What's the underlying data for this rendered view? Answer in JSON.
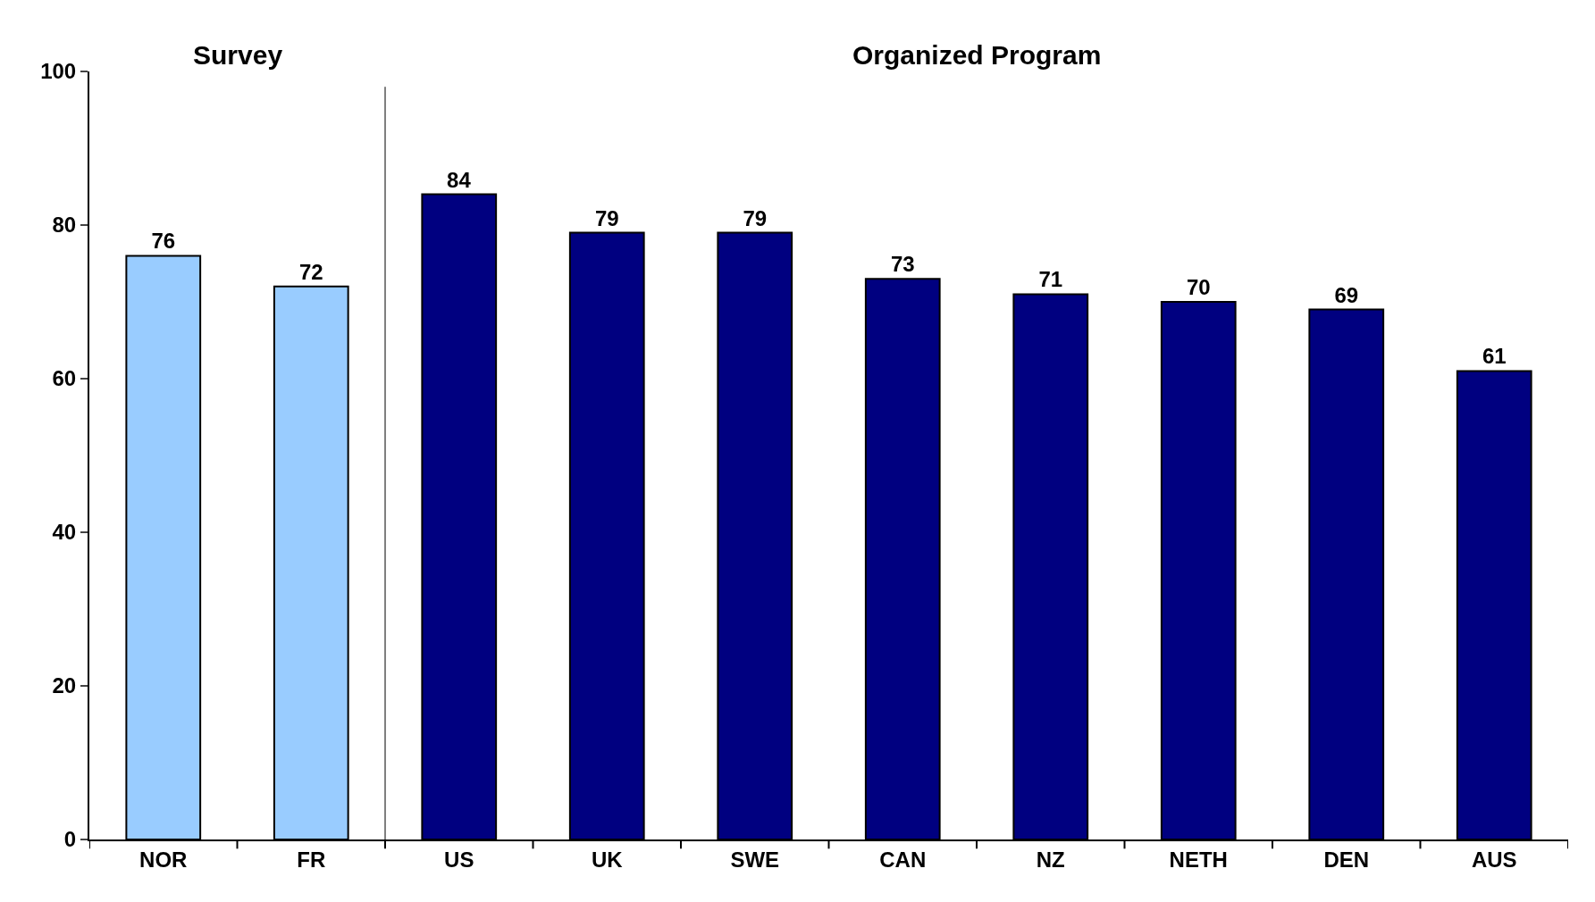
{
  "chart_data": {
    "type": "bar",
    "categories": [
      "NOR",
      "FR",
      "US",
      "UK",
      "SWE",
      "CAN",
      "NZ",
      "NETH",
      "DEN",
      "AUS"
    ],
    "values": [
      76,
      72,
      84,
      79,
      79,
      73,
      71,
      70,
      69,
      61
    ],
    "colors": [
      "#99ccff",
      "#99ccff",
      "#000080",
      "#000080",
      "#000080",
      "#000080",
      "#000080",
      "#000080",
      "#000080",
      "#000080"
    ],
    "data_labels": true,
    "ylim": [
      0,
      100
    ],
    "yticks": [
      0,
      20,
      40,
      60,
      80,
      100
    ],
    "annotations": [
      "Survey",
      "Organized Program"
    ]
  }
}
